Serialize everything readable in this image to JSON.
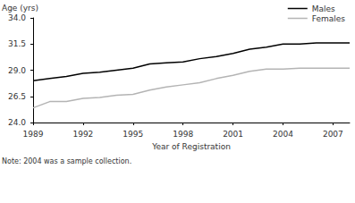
{
  "chart_data": {
    "type": "line",
    "x_label": "Year of Registration",
    "y_label": "Age (yrs)",
    "annotation": "Note: 2004 was a sample collection.",
    "x": [
      1989,
      1990,
      1991,
      1992,
      1993,
      1994,
      1995,
      1996,
      1997,
      1998,
      1999,
      2000,
      2001,
      2002,
      2003,
      2004,
      2005,
      2006,
      2007,
      2008
    ],
    "series": [
      {
        "name": "Males",
        "color": "#000000",
        "values": [
          28.0,
          28.2,
          28.4,
          28.7,
          28.8,
          29.0,
          29.2,
          29.6,
          29.7,
          29.8,
          30.1,
          30.3,
          30.6,
          31.0,
          31.2,
          31.5,
          31.5,
          31.6,
          31.6,
          31.6
        ]
      },
      {
        "name": "Females",
        "color": "#b4b4b4",
        "values": [
          25.4,
          26.0,
          26.0,
          26.3,
          26.4,
          26.6,
          26.7,
          27.1,
          27.4,
          27.6,
          27.8,
          28.2,
          28.5,
          28.9,
          29.1,
          29.1,
          29.2,
          29.2,
          29.2,
          29.2
        ]
      }
    ],
    "xlim": [
      1989,
      2008
    ],
    "xticks": [
      1989,
      1992,
      1995,
      1998,
      2001,
      2004,
      2007
    ],
    "ylim": [
      24,
      34
    ],
    "yticks": [
      {
        "value": 24,
        "label": "24.0"
      },
      26.5,
      {
        "value": 29,
        "label": "29.0"
      },
      31.5,
      {
        "value": 34,
        "label": "34.0"
      }
    ],
    "grid": false,
    "legend": "top-right"
  }
}
